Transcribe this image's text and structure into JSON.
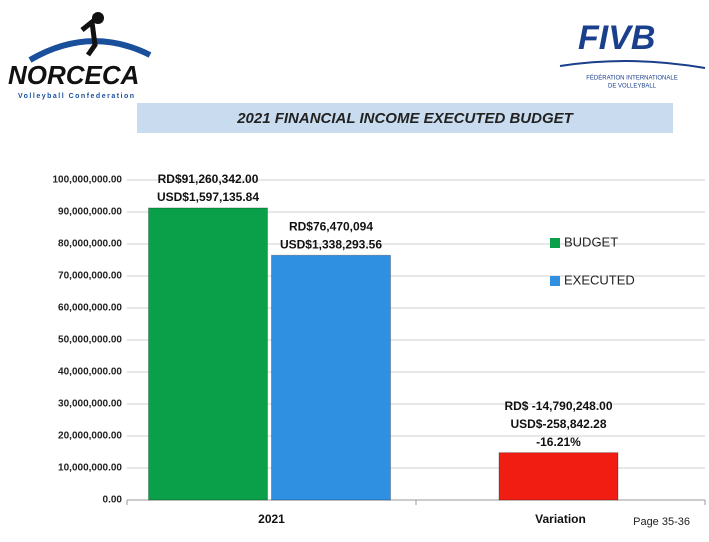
{
  "header": {
    "left_logo": {
      "name": "NORCECA",
      "sub": "Volleyball Confederation"
    },
    "right_logo": {
      "name": "FIVB",
      "sub": [
        "FÉDÉRATION INTERNATIONALE",
        "DE VOLLEYBALL"
      ]
    }
  },
  "footer": "Page 35-36",
  "chart_data": {
    "type": "bar",
    "title": "2021 FINANCIAL INCOME EXECUTED BUDGET",
    "categories": [
      "2021",
      "Variation"
    ],
    "series": [
      {
        "name": "BUDGET",
        "color": "#0aa04a",
        "values": [
          91260342,
          null
        ]
      },
      {
        "name": "EXECUTED",
        "color": "#2f8fe0",
        "values": [
          76470094,
          null
        ]
      },
      {
        "color": "#f21d12",
        "values": [
          null,
          14790248
        ]
      }
    ],
    "annotations": [
      [
        "RD$91,260,342.00",
        "USD$1,597,135.84"
      ],
      [
        "RD$76,470,094",
        "USD$1,338,293.56"
      ],
      [
        "RD$ -14,790,248.00",
        "USD$-258,842.28",
        "-16.21%"
      ]
    ],
    "ylim": [
      0,
      100000000
    ],
    "yticks": [
      {
        "value": 0,
        "label": "0.00"
      },
      {
        "value": 10000000,
        "label": "10,000,000.00"
      },
      {
        "value": 20000000,
        "label": "20,000,000.00"
      },
      {
        "value": 30000000,
        "label": "30,000,000.00"
      },
      {
        "value": 40000000,
        "label": "40,000,000.00"
      },
      {
        "value": 50000000,
        "label": "50,000,000.00"
      },
      {
        "value": 60000000,
        "label": "60,000,000.00"
      },
      {
        "value": 70000000,
        "label": "70,000,000.00"
      },
      {
        "value": 80000000,
        "label": "80,000,000.00"
      },
      {
        "value": 90000000,
        "label": "90,000,000.00"
      },
      {
        "value": 100000000,
        "label": "100,000,000.00"
      }
    ],
    "grid": true,
    "legend": "right"
  }
}
